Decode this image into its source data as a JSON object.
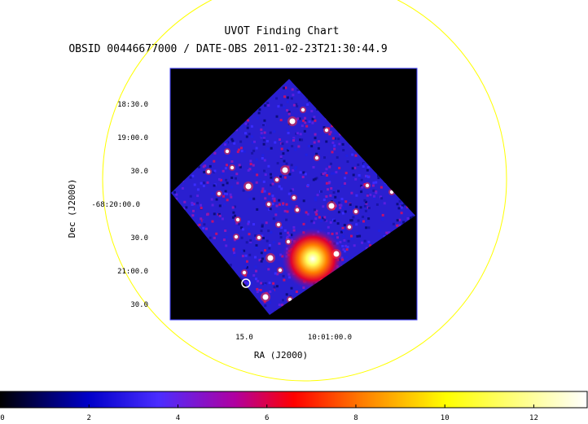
{
  "chart_data": {
    "type": "heatmap",
    "title": "UVOT Finding Chart",
    "subtitle": "OBSID 00446677000 / DATE-OBS 2011-02-23T21:30:44.9",
    "xlabel": "RA (J2000)",
    "ylabel": "Dec (J2000)",
    "x_ticks": [
      "15.0",
      "10:01:00.0"
    ],
    "y_ticks": [
      "18:30.0",
      "19:00.0",
      "30.0",
      "-68:20:00.0",
      "30.0",
      "21:00.0",
      "30.0"
    ],
    "colorbar": {
      "ticks": [
        "0",
        "2",
        "4",
        "6",
        "8",
        "10",
        "12"
      ],
      "range": [
        0,
        13.2
      ],
      "colors": [
        "#000000",
        "#0000c8",
        "#4b2dff",
        "#b000a0",
        "#ff0000",
        "#ff8000",
        "#ffff00",
        "#ffffff"
      ]
    },
    "background_level": 2.2,
    "bright_source": {
      "label": "extended bright source",
      "level": 13
    },
    "target_marker": "circle",
    "overlay_circle_color": "#ffff00",
    "frame_color": "#0000ff"
  }
}
